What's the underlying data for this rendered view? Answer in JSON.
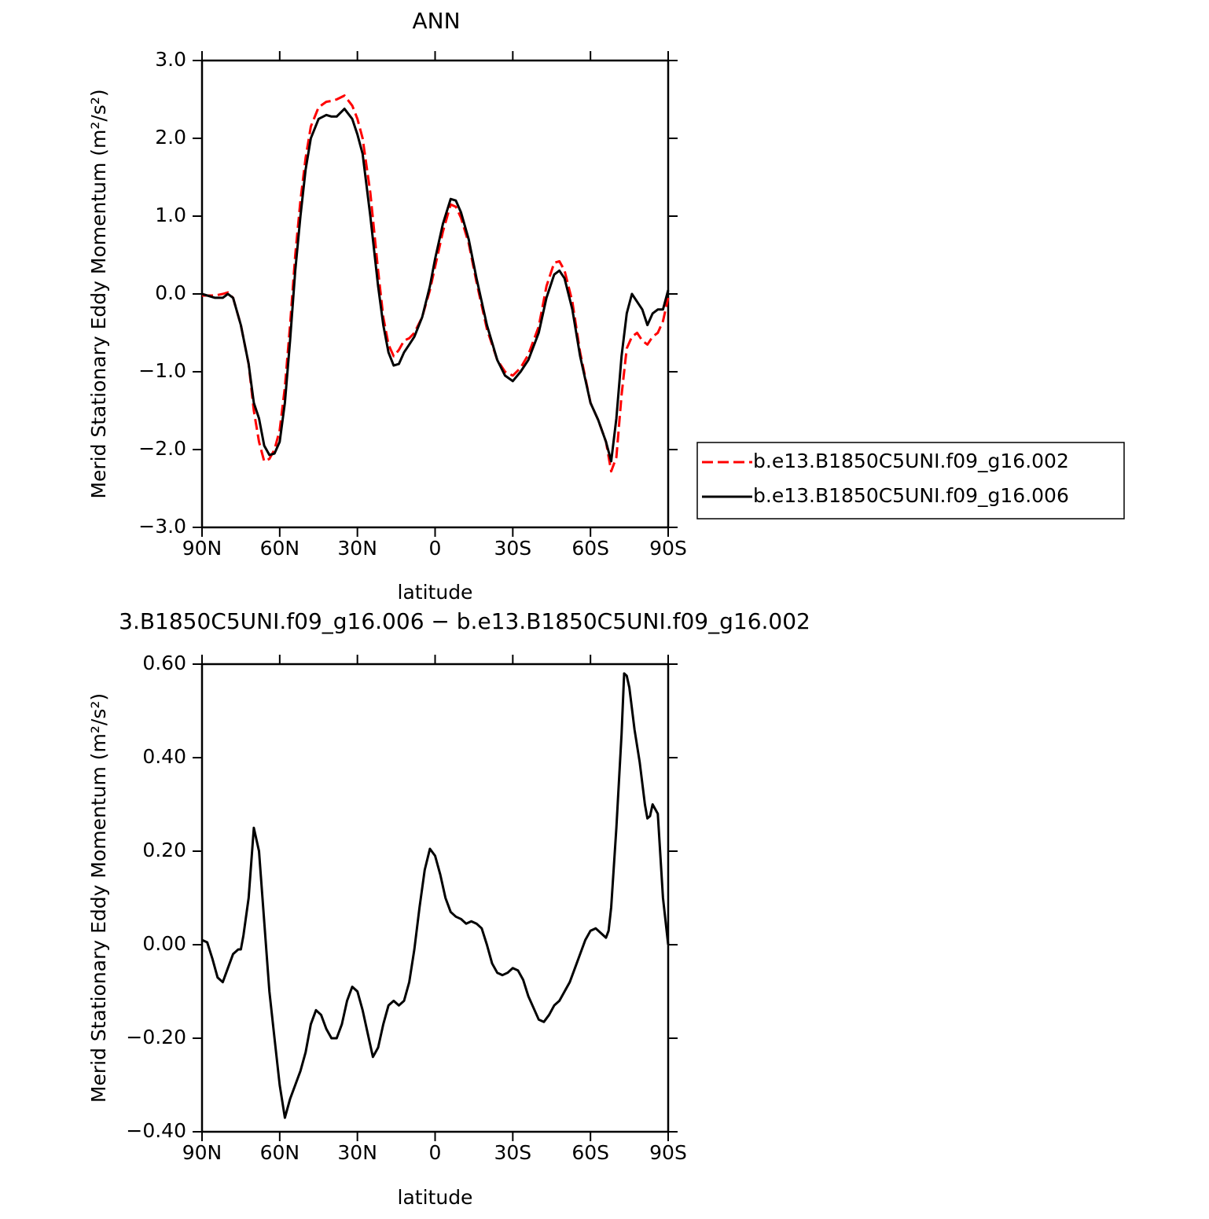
{
  "chart_data": [
    {
      "type": "line",
      "title": "ANN",
      "x_label": "latitude",
      "y_label": "Merid Stationary Eddy Momentum (m²/s²)",
      "x": [
        90,
        85,
        82,
        80,
        78,
        75,
        72,
        70,
        68,
        66,
        64,
        62,
        60,
        58,
        56,
        54,
        52,
        50,
        48,
        45,
        42,
        40,
        38,
        35,
        32,
        30,
        28,
        25,
        22,
        20,
        18,
        16,
        14,
        12,
        10,
        8,
        5,
        2,
        0,
        -3,
        -6,
        -8,
        -10,
        -13,
        -16,
        -20,
        -24,
        -27,
        -30,
        -33,
        -36,
        -40,
        -43,
        -46,
        -48,
        -50,
        -53,
        -56,
        -60,
        -63,
        -66,
        -68,
        -70,
        -72,
        -74,
        -76,
        -78,
        -80,
        -82,
        -84,
        -86,
        -88,
        -90
      ],
      "series": [
        {
          "name": "b.e13.B1850C5UNI.f09_g16.002",
          "color": "#ff0000",
          "line_style": "dashed",
          "values": [
            -0.02,
            -0.02,
            0.0,
            0.02,
            -0.05,
            -0.4,
            -0.9,
            -1.5,
            -1.9,
            -2.15,
            -2.12,
            -2.0,
            -1.75,
            -1.2,
            -0.4,
            0.5,
            1.2,
            1.75,
            2.15,
            2.4,
            2.47,
            2.48,
            2.5,
            2.55,
            2.42,
            2.25,
            2.0,
            1.3,
            0.3,
            -0.3,
            -0.65,
            -0.8,
            -0.72,
            -0.6,
            -0.57,
            -0.5,
            -0.3,
            0.05,
            0.35,
            0.8,
            1.15,
            1.12,
            0.98,
            0.65,
            0.15,
            -0.45,
            -0.85,
            -1.0,
            -1.05,
            -0.95,
            -0.78,
            -0.42,
            0.1,
            0.4,
            0.42,
            0.3,
            -0.1,
            -0.75,
            -1.4,
            -1.62,
            -1.9,
            -2.28,
            -2.1,
            -1.3,
            -0.7,
            -0.55,
            -0.5,
            -0.6,
            -0.65,
            -0.55,
            -0.5,
            -0.35,
            -0.05
          ]
        },
        {
          "name": "b.e13.B1850C5UNI.f09_g16.006",
          "color": "#000000",
          "line_style": "solid",
          "values": [
            0.0,
            -0.05,
            -0.05,
            0.0,
            -0.05,
            -0.4,
            -0.9,
            -1.4,
            -1.6,
            -1.95,
            -2.07,
            -2.05,
            -1.9,
            -1.4,
            -0.6,
            0.3,
            1.0,
            1.6,
            2.0,
            2.25,
            2.3,
            2.28,
            2.28,
            2.38,
            2.25,
            2.05,
            1.8,
            1.0,
            0.1,
            -0.4,
            -0.75,
            -0.92,
            -0.9,
            -0.75,
            -0.65,
            -0.55,
            -0.3,
            0.1,
            0.45,
            0.9,
            1.22,
            1.2,
            1.05,
            0.7,
            0.2,
            -0.4,
            -0.85,
            -1.05,
            -1.12,
            -1.0,
            -0.85,
            -0.5,
            -0.05,
            0.25,
            0.3,
            0.2,
            -0.2,
            -0.8,
            -1.4,
            -1.62,
            -1.9,
            -2.15,
            -1.6,
            -0.8,
            -0.25,
            0.0,
            -0.1,
            -0.2,
            -0.4,
            -0.25,
            -0.2,
            -0.2,
            0.05
          ]
        }
      ],
      "xlim": [
        90,
        -90
      ],
      "xticks": [
        {
          "value": 90,
          "label": "90N"
        },
        {
          "value": 60,
          "label": "60N"
        },
        {
          "value": 30,
          "label": "30N"
        },
        0,
        {
          "value": -30,
          "label": "30S"
        },
        {
          "value": -60,
          "label": "60S"
        },
        {
          "value": -90,
          "label": "90S"
        }
      ],
      "ylim": [
        -3,
        3
      ],
      "yticks": [
        {
          "value": 3,
          "label": "3.0"
        },
        {
          "value": 2,
          "label": "2.0"
        },
        {
          "value": 1,
          "label": "1.0"
        },
        {
          "value": 0,
          "label": "0.0"
        },
        {
          "value": -1,
          "label": "−1.0"
        },
        {
          "value": -2,
          "label": "−2.0"
        },
        {
          "value": -3,
          "label": "−3.0"
        }
      ],
      "legend": "outside-right"
    },
    {
      "type": "line",
      "title": "3.B1850C5UNI.f09_g16.006 − b.e13.B1850C5UNI.f09_g16.002",
      "x_label": "latitude",
      "y_label": "Merid Stationary Eddy Momentum (m²/s²)",
      "x": [
        90,
        88,
        86,
        84,
        82,
        80,
        78,
        76,
        75,
        74,
        72,
        70,
        68,
        66,
        64,
        62,
        60,
        58,
        56,
        54,
        52,
        50,
        48,
        46,
        44,
        42,
        40,
        38,
        36,
        34,
        32,
        30,
        28,
        26,
        24,
        22,
        20,
        18,
        16,
        14,
        12,
        10,
        8,
        6,
        4,
        2,
        0,
        -2,
        -4,
        -6,
        -8,
        -10,
        -12,
        -14,
        -16,
        -18,
        -20,
        -22,
        -24,
        -26,
        -28,
        -30,
        -32,
        -34,
        -36,
        -38,
        -40,
        -42,
        -44,
        -46,
        -48,
        -50,
        -52,
        -54,
        -56,
        -58,
        -60,
        -62,
        -64,
        -66,
        -67,
        -68,
        -70,
        -72,
        -73,
        -74,
        -75,
        -77,
        -79,
        -81,
        -82,
        -83,
        -84,
        -86,
        -88,
        -90
      ],
      "series": [
        {
          "color": "#000000",
          "line_style": "solid",
          "values": [
            0.01,
            0.005,
            -0.03,
            -0.07,
            -0.08,
            -0.05,
            -0.02,
            -0.01,
            -0.01,
            0.02,
            0.1,
            0.25,
            0.2,
            0.05,
            -0.1,
            -0.2,
            -0.3,
            -0.37,
            -0.33,
            -0.3,
            -0.27,
            -0.23,
            -0.17,
            -0.14,
            -0.15,
            -0.18,
            -0.2,
            -0.2,
            -0.17,
            -0.12,
            -0.09,
            -0.1,
            -0.14,
            -0.19,
            -0.24,
            -0.22,
            -0.17,
            -0.13,
            -0.12,
            -0.13,
            -0.12,
            -0.08,
            -0.01,
            0.08,
            0.16,
            0.205,
            0.19,
            0.15,
            0.1,
            0.07,
            0.06,
            0.055,
            0.045,
            0.05,
            0.045,
            0.035,
            0.0,
            -0.04,
            -0.06,
            -0.065,
            -0.06,
            -0.05,
            -0.055,
            -0.075,
            -0.11,
            -0.135,
            -0.16,
            -0.165,
            -0.15,
            -0.13,
            -0.12,
            -0.1,
            -0.08,
            -0.05,
            -0.02,
            0.01,
            0.03,
            0.035,
            0.025,
            0.015,
            0.03,
            0.08,
            0.25,
            0.45,
            0.58,
            0.575,
            0.55,
            0.46,
            0.39,
            0.3,
            0.27,
            0.275,
            0.3,
            0.28,
            0.1,
            0.0
          ]
        }
      ],
      "xlim": [
        90,
        -90
      ],
      "xticks": [
        {
          "value": 90,
          "label": "90N"
        },
        {
          "value": 60,
          "label": "60N"
        },
        {
          "value": 30,
          "label": "30N"
        },
        0,
        {
          "value": -30,
          "label": "30S"
        },
        {
          "value": -60,
          "label": "60S"
        },
        {
          "value": -90,
          "label": "90S"
        }
      ],
      "ylim": [
        -0.4,
        0.6
      ],
      "yticks": [
        {
          "value": 0.6,
          "label": "0.60"
        },
        {
          "value": 0.4,
          "label": "0.40"
        },
        {
          "value": 0.2,
          "label": "0.20"
        },
        {
          "value": 0,
          "label": "0.00"
        },
        {
          "value": -0.2,
          "label": "−0.20"
        },
        {
          "value": -0.4,
          "label": "−0.40"
        }
      ]
    }
  ]
}
